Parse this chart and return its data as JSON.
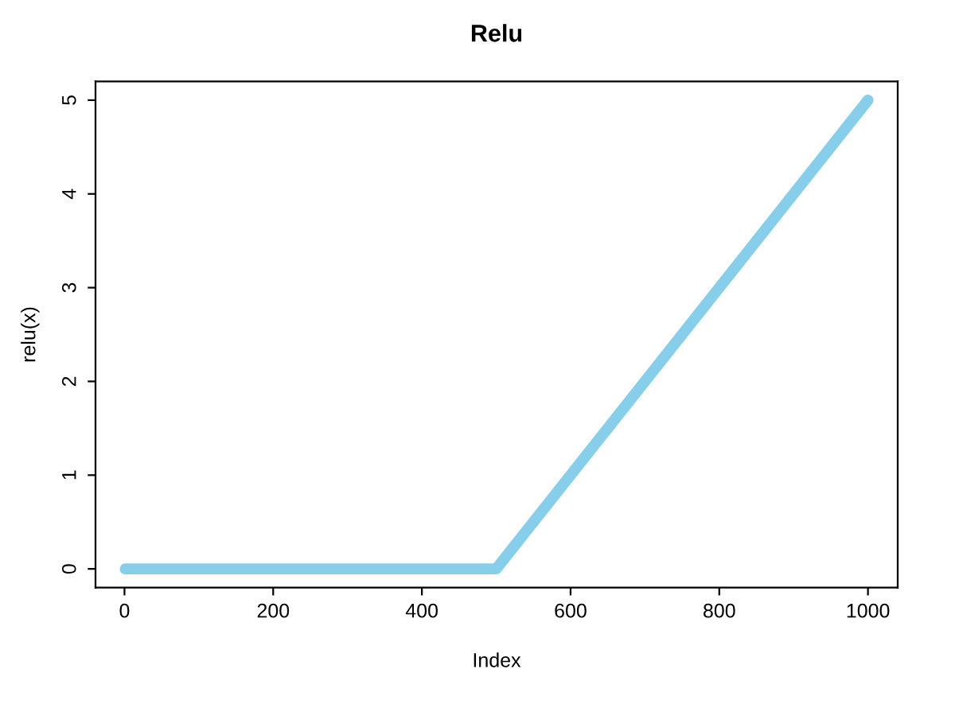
{
  "chart_data": {
    "type": "line",
    "title": "Relu",
    "xlabel": "Index",
    "ylabel": "relu(x)",
    "x": [
      1,
      500,
      1000
    ],
    "series": [
      {
        "color": "#87ceeb",
        "values": [
          0,
          0,
          5
        ]
      }
    ],
    "xlim": [
      -39,
      1040
    ],
    "ylim": [
      -0.2,
      5.2
    ],
    "xticks": [
      0,
      200,
      400,
      600,
      800,
      1000
    ],
    "yticks": [
      0,
      1,
      2,
      3,
      4,
      5
    ],
    "grid": false,
    "line_style": "solid",
    "marker": "none"
  }
}
